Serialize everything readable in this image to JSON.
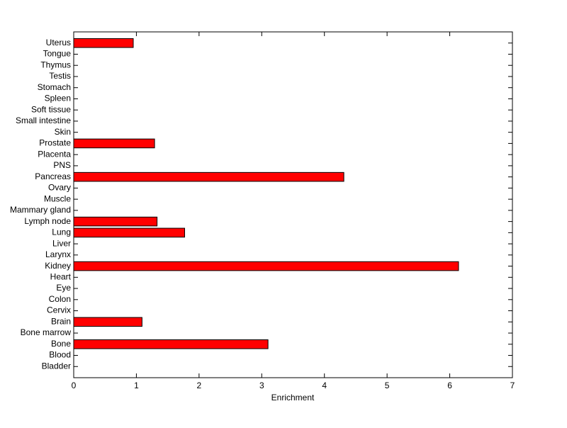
{
  "chart_data": {
    "type": "barh",
    "xlabel": "Enrichment",
    "categories": [
      "Bladder",
      "Blood",
      "Bone",
      "Bone marrow",
      "Brain",
      "Cervix",
      "Colon",
      "Eye",
      "Heart",
      "Kidney",
      "Larynx",
      "Liver",
      "Lung",
      "Lymph node",
      "Mammary gland",
      "Muscle",
      "Ovary",
      "Pancreas",
      "PNS",
      "Placenta",
      "Prostate",
      "Skin",
      "Small intestine",
      "Soft tissue",
      "Spleen",
      "Stomach",
      "Testis",
      "Thymus",
      "Tongue",
      "Uterus"
    ],
    "values": [
      0,
      0,
      3.1,
      0,
      1.09,
      0,
      0,
      0,
      0,
      6.14,
      0,
      0,
      1.77,
      1.33,
      0,
      0,
      0,
      4.31,
      0,
      0,
      1.29,
      0,
      0,
      0,
      0,
      0,
      0,
      0,
      0,
      0.95
    ],
    "color": "#ff0000",
    "xlim": [
      0,
      7
    ],
    "xticks": [
      0,
      1,
      2,
      3,
      4,
      5,
      6,
      7
    ]
  }
}
